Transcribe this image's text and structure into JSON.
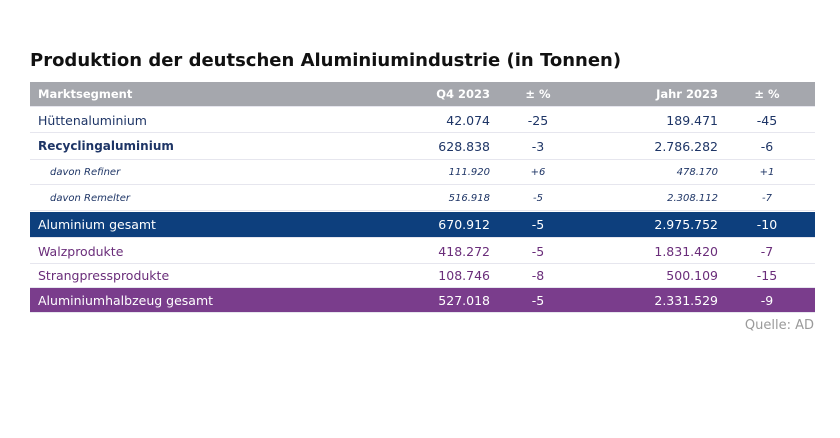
{
  "title": "Produktion der deutschen Aluminiumindustrie (in Tonnen)",
  "table": {
    "header": [
      "Marktsegment",
      "Q4 2023",
      "± %",
      "Jahr 2023",
      "± %"
    ],
    "rows": [
      [
        "Hüttenaluminium",
        "42.074",
        "-25",
        "189.471",
        "-45"
      ],
      [
        "Recyclingaluminium",
        "628.838",
        "-3",
        "2.786.282",
        "-6"
      ],
      [
        "davon Refiner",
        "111.920",
        "+6",
        "478.170",
        "+1"
      ],
      [
        "davon Remelter",
        "516.918",
        "-5",
        "2.308.112",
        "-7"
      ],
      [
        "Aluminium gesamt",
        "670.912",
        "-5",
        "2.975.752",
        "-10"
      ],
      [
        "Walzprodukte",
        "418.272",
        "-5",
        "1.831.420",
        "-7"
      ],
      [
        "Strangpressprodukte",
        "108.746",
        "-8",
        "500.109",
        "-15"
      ],
      [
        "Aluminiumhalbzeug gesamt",
        "527.018",
        "-5",
        "2.331.529",
        "-9"
      ]
    ]
  },
  "source": "Quelle: AD"
}
